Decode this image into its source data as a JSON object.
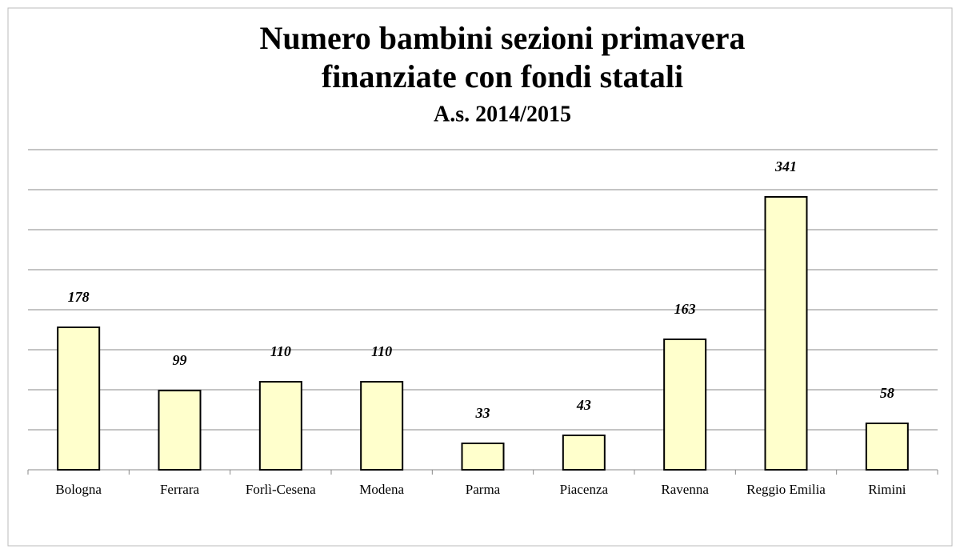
{
  "chart_data": {
    "type": "bar",
    "title": [
      "Numero bambini sezioni primavera",
      "finanziate con fondi statali"
    ],
    "subtitle": "A.s. 2014/2015",
    "categories": [
      "Bologna",
      "Ferrara",
      "Forlì-Cesena",
      "Modena",
      "Parma",
      "Piacenza",
      "Ravenna",
      "Reggio Emilia",
      "Rimini"
    ],
    "values": [
      178,
      99,
      110,
      110,
      33,
      43,
      163,
      341,
      58
    ],
    "color": "#ffffcc",
    "ylim": [
      0,
      400
    ],
    "yticks": [
      0,
      50,
      100,
      150,
      200,
      250,
      300,
      350,
      400
    ],
    "grid": true
  }
}
